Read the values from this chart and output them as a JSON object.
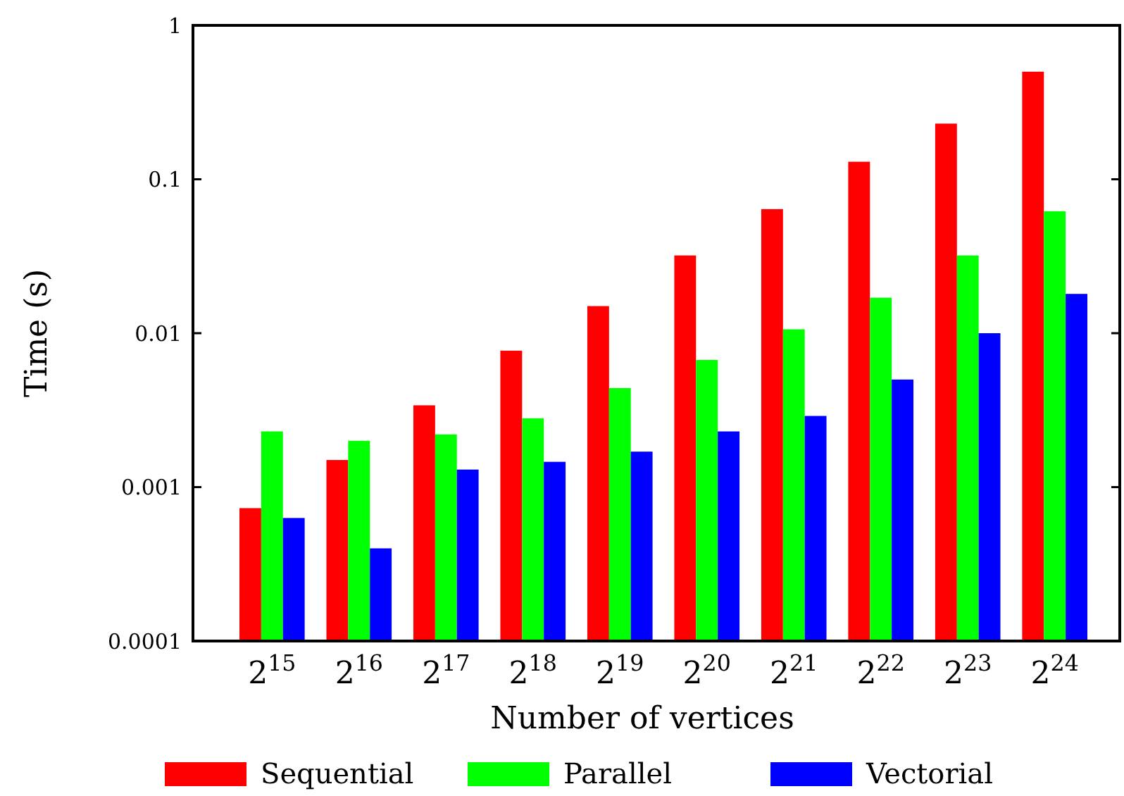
{
  "chart_data": {
    "type": "bar",
    "xlabel": "Number of vertices",
    "ylabel": "Time (s)",
    "categories": [
      "2$^{15}$",
      "2$^{16}$",
      "2$^{17}$",
      "2$^{18}$",
      "2$^{19}$",
      "2$^{20}$",
      "2$^{21}$",
      "2$^{22}$",
      "2$^{23}$",
      "2$^{24}$"
    ],
    "series": [
      {
        "name": "Sequential",
        "color": "#ff0000",
        "values": [
          0.00073,
          0.0015,
          0.0034,
          0.0077,
          0.015,
          0.032,
          0.064,
          0.13,
          0.23,
          0.5
        ]
      },
      {
        "name": "Parallel",
        "color": "#00ff00",
        "values": [
          0.0023,
          0.002,
          0.0022,
          0.0028,
          0.0044,
          0.0067,
          0.0106,
          0.017,
          0.032,
          0.062
        ]
      },
      {
        "name": "Vectorial",
        "color": "#0000ff",
        "values": [
          0.00063,
          0.0004,
          0.0013,
          0.00146,
          0.0017,
          0.0023,
          0.0029,
          0.005,
          0.01,
          0.018
        ]
      }
    ],
    "log": true,
    "ylim": [
      0.0001,
      1
    ],
    "yticks": [
      0.0001,
      0.001,
      0.01,
      0.1,
      1
    ],
    "grid": false,
    "legend": "bottom"
  }
}
